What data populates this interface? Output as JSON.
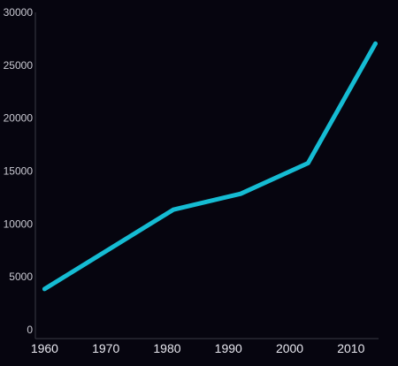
{
  "chart_data": {
    "type": "line",
    "title": "",
    "xlabel": "",
    "ylabel": "",
    "xlim": [
      1958.5,
      2014.5
    ],
    "ylim": [
      0,
      30000
    ],
    "x_ticks": [
      1960,
      1970,
      1980,
      1990,
      2000,
      2010
    ],
    "y_ticks": [
      0,
      5000,
      10000,
      15000,
      20000,
      25000,
      30000
    ],
    "grid": false,
    "legend": "none",
    "line_color": "#15bcd3",
    "axis_color": "#3a3a46",
    "series": [
      {
        "x": [
          1960,
          1981,
          1992,
          2003,
          2014
        ],
        "y": [
          3850,
          11350,
          12850,
          15750,
          27050
        ]
      }
    ]
  }
}
